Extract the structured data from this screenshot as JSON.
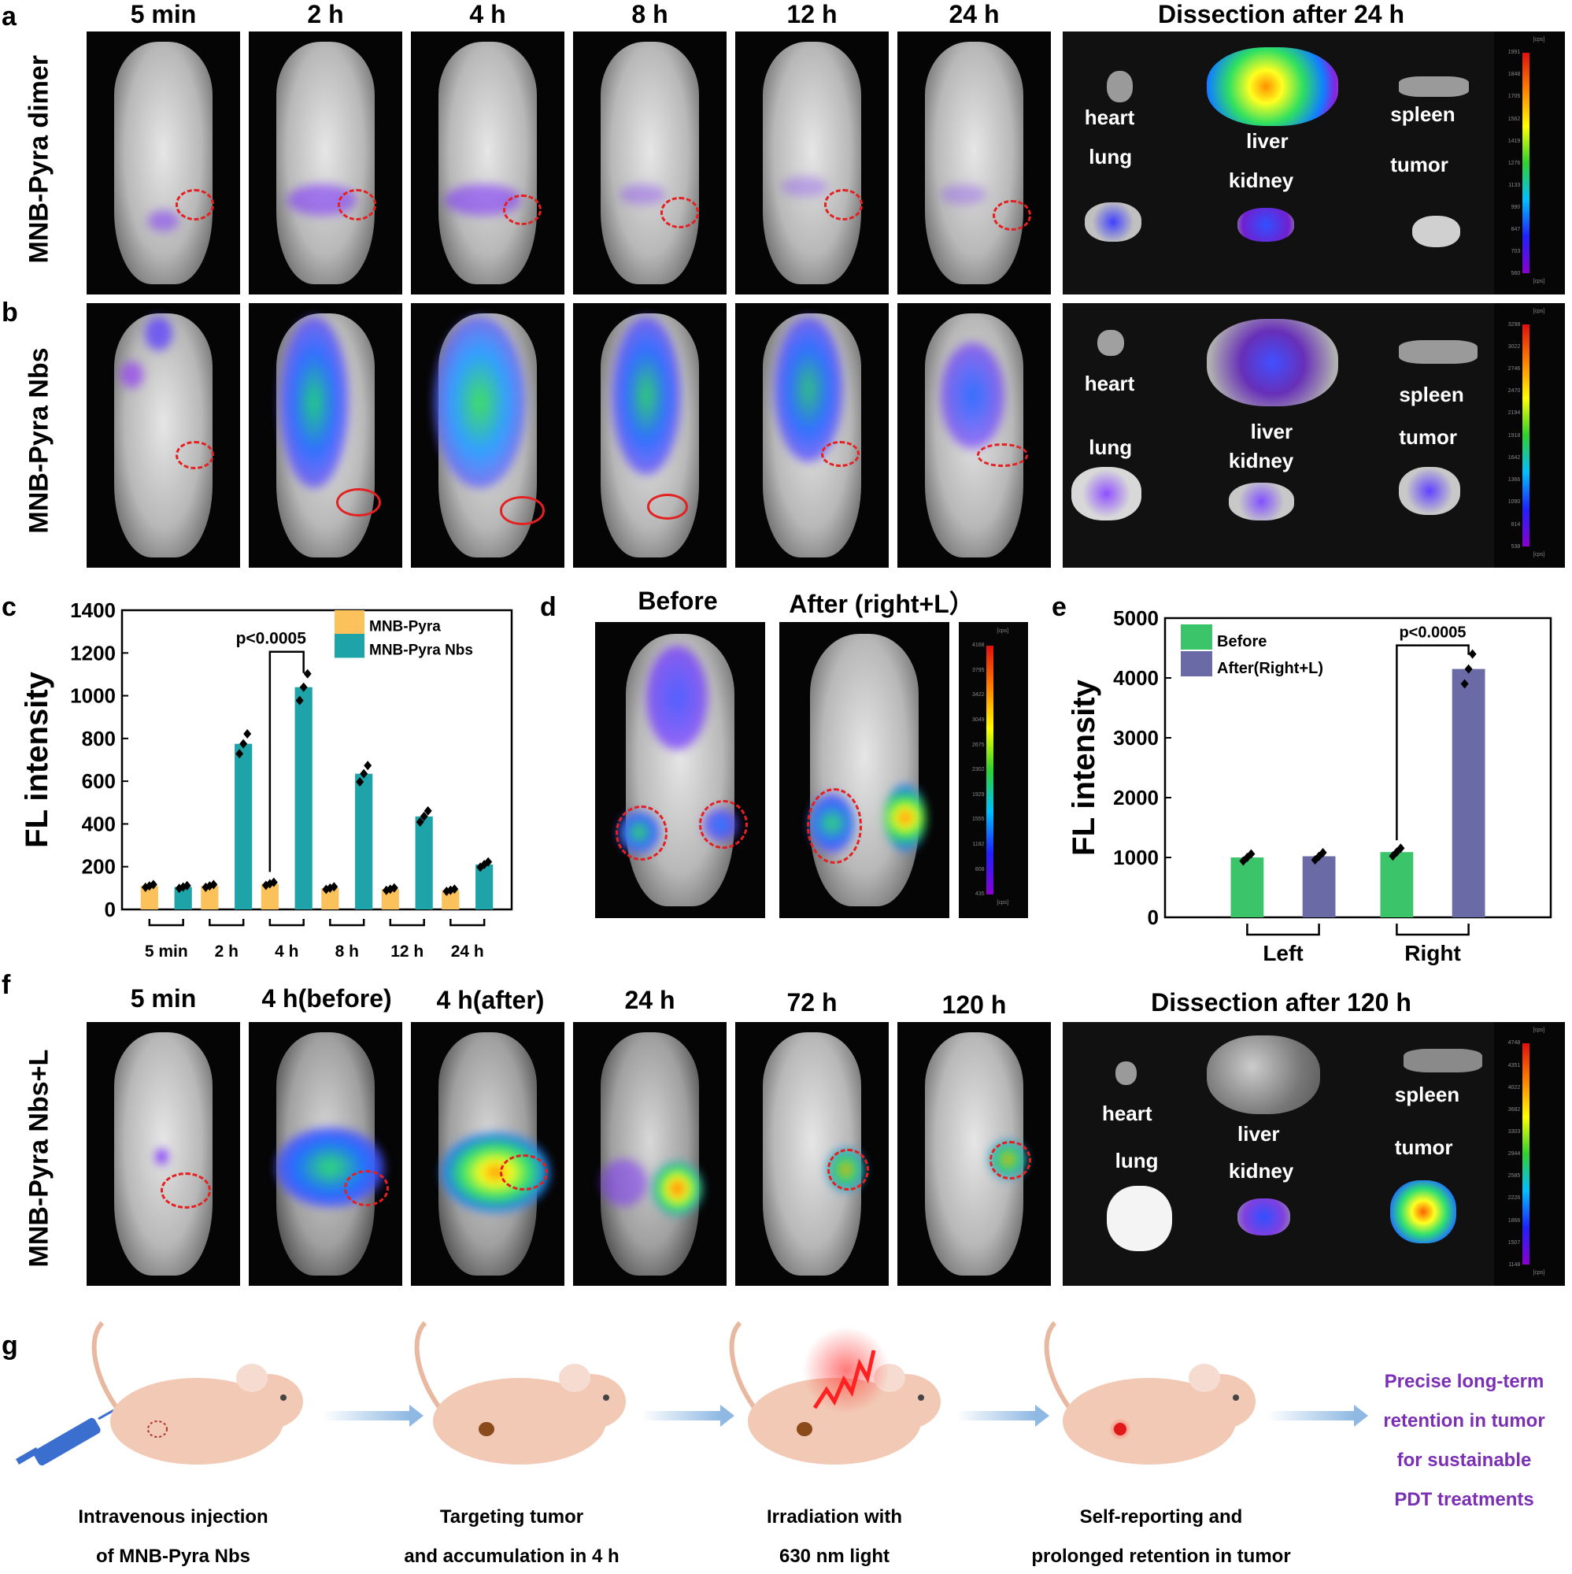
{
  "panels": {
    "a": "a",
    "b": "b",
    "c": "c",
    "d": "d",
    "e": "e",
    "f": "f",
    "g": "g"
  },
  "row_ab": {
    "col_titles": [
      "5 min",
      "2 h",
      "4 h",
      "8 h",
      "12 h",
      "24 h"
    ],
    "dissection_title": "Dissection after 24 h",
    "row_a_label": "MNB-Pyra dimer",
    "row_b_label": "MNB-Pyra Nbs",
    "organs_a": {
      "heart": "heart",
      "liver": "liver",
      "spleen": "spleen",
      "lung": "lung",
      "kidney": "kidney",
      "tumor": "tumor"
    },
    "organs_b": {
      "heart": "heart",
      "liver": "liver",
      "spleen": "spleen",
      "lung": "lung",
      "kidney": "kidney",
      "tumor": "tumor"
    },
    "colorbar_a": {
      "ticks": [
        "1991",
        "1848",
        "1705",
        "1562",
        "1419",
        "1276",
        "1133",
        "990",
        "847",
        "703",
        "560"
      ],
      "unit": "[cps]"
    },
    "colorbar_b": {
      "ticks": [
        "3298",
        "3022",
        "2746",
        "2470",
        "2194",
        "1918",
        "1642",
        "1366",
        "1090",
        "814",
        "538"
      ],
      "unit": "[cps]"
    }
  },
  "panel_d": {
    "before": "Before",
    "after": "After (right+L）",
    "colorbar": {
      "ticks": [
        "4168",
        "3795",
        "3422",
        "3049",
        "2675",
        "2302",
        "1929",
        "1555",
        "1182",
        "808",
        "435"
      ],
      "unit": "[cps]"
    }
  },
  "row_f": {
    "col_titles": [
      "5 min",
      "4 h(before)",
      "4 h(after)",
      "24 h",
      "72 h",
      "120 h"
    ],
    "dissection_title": "Dissection after 120 h",
    "row_label": "MNB-Pyra Nbs+L",
    "organs": {
      "heart": "heart",
      "liver": "liver",
      "spleen": "spleen",
      "lung": "lung",
      "kidney": "kidney",
      "tumor": "tumor"
    },
    "colorbar": {
      "ticks": [
        "4748",
        "4351",
        "4022",
        "3682",
        "3303",
        "2944",
        "2585",
        "2226",
        "1866",
        "1507",
        "1148"
      ],
      "unit": "[cps]"
    }
  },
  "chart_data": [
    {
      "id": "c",
      "type": "bar",
      "title": "",
      "xlabel": "",
      "ylabel": "FL intensity",
      "ylim": [
        0,
        1400
      ],
      "yticks": [
        0,
        200,
        400,
        600,
        800,
        1000,
        1200,
        1400
      ],
      "categories": [
        "5 min",
        "2 h",
        "4 h",
        "8 h",
        "12 h",
        "24 h"
      ],
      "series": [
        {
          "name": "MNB-Pyra",
          "color": "#fbc15a",
          "values": [
            110,
            110,
            120,
            100,
            95,
            90
          ]
        },
        {
          "name": "MNB-Pyra Nbs",
          "color": "#1ea3a8",
          "values": [
            105,
            775,
            1040,
            635,
            435,
            210
          ]
        }
      ],
      "annotation": "p<0.0005",
      "legend": "top-right"
    },
    {
      "id": "e",
      "type": "bar",
      "title": "",
      "xlabel": "",
      "ylabel": "FL intensity",
      "ylim": [
        0,
        5000
      ],
      "yticks": [
        0,
        1000,
        2000,
        3000,
        4000,
        5000
      ],
      "categories": [
        "Left",
        "Right"
      ],
      "series": [
        {
          "name": "Before",
          "color": "#3cc46a",
          "values": [
            1000,
            1090
          ]
        },
        {
          "name": "After(Right+L)",
          "color": "#6a6ba6",
          "values": [
            1020,
            4150
          ]
        }
      ],
      "annotation": "p<0.0005",
      "legend": "top-left"
    }
  ],
  "panel_g": {
    "captions": [
      [
        "Intravenous injection",
        "of MNB-Pyra Nbs"
      ],
      [
        "Targeting tumor",
        "and accumulation in  4 h"
      ],
      [
        "Irradiation with",
        "630 nm light"
      ],
      [
        "Self-reporting and",
        "prolonged retention in tumor"
      ]
    ],
    "final": [
      "Precise long-term",
      "retention in tumor",
      "for sustainable",
      "PDT treatments"
    ]
  },
  "colors": {
    "tumor_ring": "#e52020",
    "final_text": "#7a2fb5",
    "arrow": "#9cc3e6"
  }
}
